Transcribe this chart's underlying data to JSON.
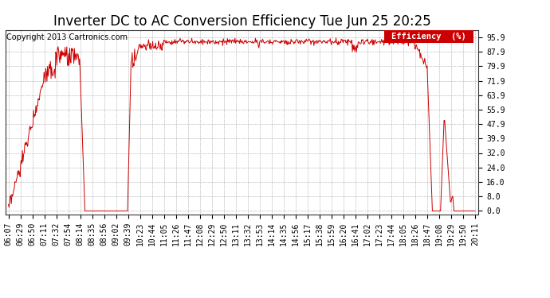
{
  "title": "Inverter DC to AC Conversion Efficiency Tue Jun 25 20:25",
  "copyright": "Copyright 2013 Cartronics.com",
  "legend_label": "Efficiency  (%)",
  "legend_bg": "#cc0000",
  "legend_text_color": "#ffffff",
  "line_color": "#cc0000",
  "bg_color": "#ffffff",
  "grid_color": "#999999",
  "yticks": [
    0.0,
    8.0,
    16.0,
    24.0,
    32.0,
    39.9,
    47.9,
    55.9,
    63.9,
    71.9,
    79.9,
    87.9,
    95.9
  ],
  "ylim": [
    -2,
    100
  ],
  "xtick_labels": [
    "06:07",
    "06:29",
    "06:50",
    "07:11",
    "07:32",
    "07:54",
    "08:14",
    "08:35",
    "08:56",
    "09:02",
    "09:39",
    "10:23",
    "10:44",
    "11:05",
    "11:26",
    "11:47",
    "12:08",
    "12:29",
    "12:50",
    "13:11",
    "13:32",
    "13:53",
    "14:14",
    "14:35",
    "14:56",
    "15:17",
    "15:38",
    "15:59",
    "16:20",
    "16:41",
    "17:02",
    "17:23",
    "17:44",
    "18:05",
    "18:26",
    "18:47",
    "19:08",
    "19:29",
    "19:50",
    "20:11"
  ],
  "title_fontsize": 12,
  "axis_label_fontsize": 7,
  "copyright_fontsize": 7
}
